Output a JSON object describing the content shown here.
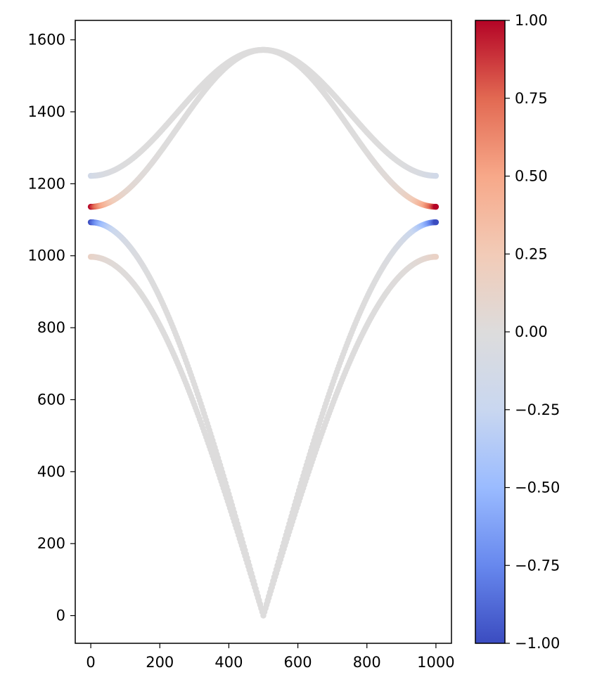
{
  "chart_data": {
    "type": "scatter",
    "title": "",
    "xlabel": "",
    "ylabel": "",
    "xlim": [
      -45,
      1045
    ],
    "ylim": [
      -77,
      1654
    ],
    "x_ticks": [
      0,
      200,
      400,
      600,
      800,
      1000
    ],
    "x_tick_labels": [
      "0",
      "200",
      "400",
      "600",
      "800",
      "1000"
    ],
    "y_ticks": [
      0,
      200,
      400,
      600,
      800,
      1000,
      1200,
      1400,
      1600
    ],
    "y_tick_labels": [
      "0",
      "200",
      "400",
      "600",
      "800",
      "1000",
      "1200",
      "1400",
      "1600"
    ],
    "grid": false,
    "colormap": "coolwarm",
    "colormap_stops": [
      "#3b4cc0",
      "#6788ee",
      "#9abbff",
      "#c9d7f0",
      "#dddcdc",
      "#f2cbb7",
      "#f7a889",
      "#e26952",
      "#b40426"
    ],
    "color_range": [
      -1,
      1
    ],
    "colorbar": {
      "ticks": [
        1.0,
        0.75,
        0.5,
        0.25,
        0.0,
        -0.25,
        -0.5,
        -0.75,
        -1.0
      ],
      "tick_labels": [
        "1.00",
        "0.75",
        "0.50",
        "0.25",
        "0.00",
        "−0.25",
        "−0.50",
        "−0.75",
        "−1.00"
      ]
    },
    "series": [
      {
        "upper": true,
        "y_edge": 1222,
        "y_center": 1572,
        "c_edge": -0.15
      },
      {
        "upper": true,
        "y_edge": 1136,
        "y_center": 1572,
        "c_edge": 1.0
      },
      {
        "upper": false,
        "y_edge": 1093,
        "y_center": 0,
        "c_edge": -1.0
      },
      {
        "upper": false,
        "y_edge": 997,
        "y_center": 0,
        "c_edge": 0.15
      }
    ],
    "x_range": [
      0,
      1000
    ]
  }
}
